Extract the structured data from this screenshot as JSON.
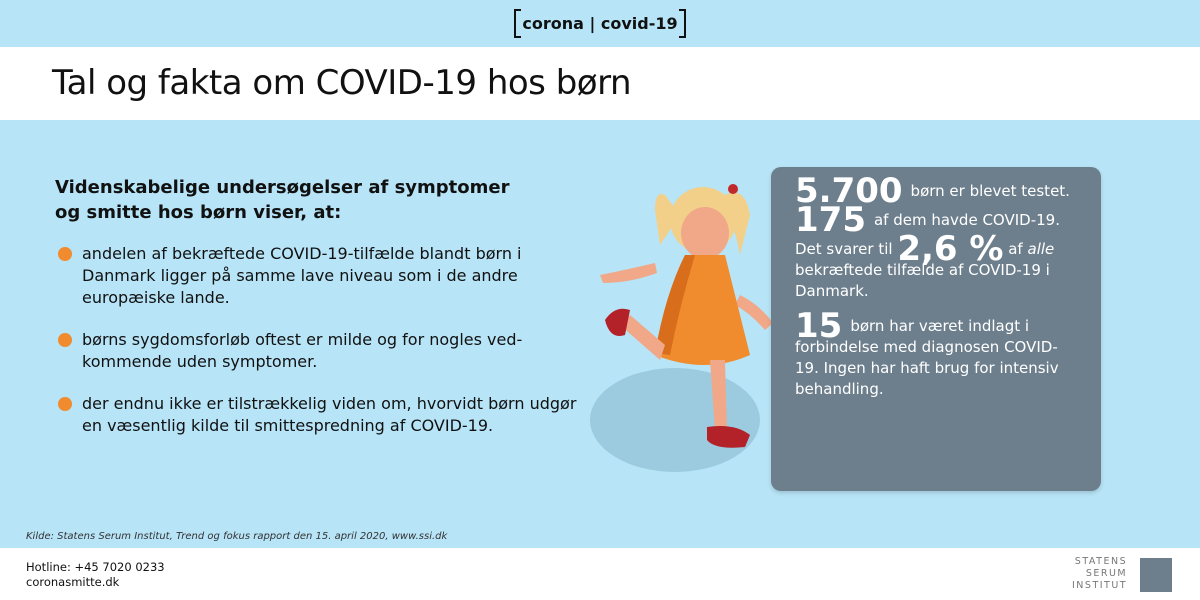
{
  "header": {
    "brand": "corona | covid-19",
    "title": "Tal og fakta om COVID-19 hos børn"
  },
  "intro": "Videnskabelige undersøgelser af symptomer og smitte hos børn viser, at:",
  "bullets": [
    "andelen af bekræftede COVID-19-tilfælde blandt børn i Danmark ligger på samme lave niveau som i de andre europæiske lande.",
    "børns sygdomsforløb oftest er milde og for nogles ved-kommende uden symptomer.",
    "der endnu ikke er tilstrækkelig viden om, hvorvidt børn udgør en væsentlig kilde til smittespredning af COVID-19."
  ],
  "card": {
    "tested_num": "5.700",
    "tested_text": "børn er blevet testet.",
    "covid_num": "175",
    "covid_text": "af dem havde COVID-19.",
    "share_pre": "Det svarer til",
    "share_num": "2,6 %",
    "share_mid": "af",
    "share_em": "alle",
    "share_post": "bekræftede tilfælde af COVID-19 i Danmark.",
    "hosp_num": "15",
    "hosp_text": "børn har været indlagt i forbindelse med diagnosen COVID-19. Ingen har haft brug for intensiv behandling."
  },
  "source": "Kilde: Statens Serum Institut, Trend og fokus rapport den 15. april 2020, www.ssi.dk",
  "footer": {
    "hotline": "Hotline: +45 7020 0233",
    "website": "coronasmitte.dk",
    "logo_lines": [
      "STATENS",
      "SERUM",
      "INSTITUT"
    ]
  },
  "colors": {
    "background": "#b7e4f7",
    "card": "#6d7f8d",
    "bullet": "#f08c2e"
  }
}
